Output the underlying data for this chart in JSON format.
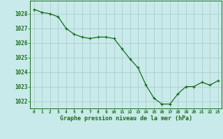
{
  "x": [
    0,
    1,
    2,
    3,
    4,
    5,
    6,
    7,
    8,
    9,
    10,
    11,
    12,
    13,
    14,
    15,
    16,
    17,
    18,
    19,
    20,
    21,
    22,
    23
  ],
  "y": [
    1028.3,
    1028.1,
    1028.0,
    1027.8,
    1027.0,
    1026.6,
    1026.4,
    1026.3,
    1026.4,
    1026.4,
    1026.3,
    1025.6,
    1024.9,
    1024.3,
    1023.1,
    1022.2,
    1021.8,
    1021.8,
    1022.5,
    1023.0,
    1023.0,
    1023.3,
    1023.1,
    1023.4
  ],
  "line_color": "#1a6b1a",
  "marker_color": "#1a6b1a",
  "bg_color": "#c8eaea",
  "grid_color": "#aac8c8",
  "xlabel": "Graphe pression niveau de la mer (hPa)",
  "xlabel_color": "#1a6b1a",
  "tick_color": "#1a6b1a",
  "ylim_min": 1021.5,
  "ylim_max": 1028.9,
  "yticks": [
    1022,
    1023,
    1024,
    1025,
    1026,
    1027,
    1028
  ],
  "xticks": [
    0,
    1,
    2,
    3,
    4,
    5,
    6,
    7,
    8,
    9,
    10,
    11,
    12,
    13,
    14,
    15,
    16,
    17,
    18,
    19,
    20,
    21,
    22,
    23
  ],
  "xtick_labels": [
    "0",
    "1",
    "2",
    "3",
    "4",
    "5",
    "6",
    "7",
    "8",
    "9",
    "10",
    "11",
    "12",
    "13",
    "14",
    "15",
    "16",
    "17",
    "18",
    "19",
    "20",
    "21",
    "22",
    "23"
  ]
}
